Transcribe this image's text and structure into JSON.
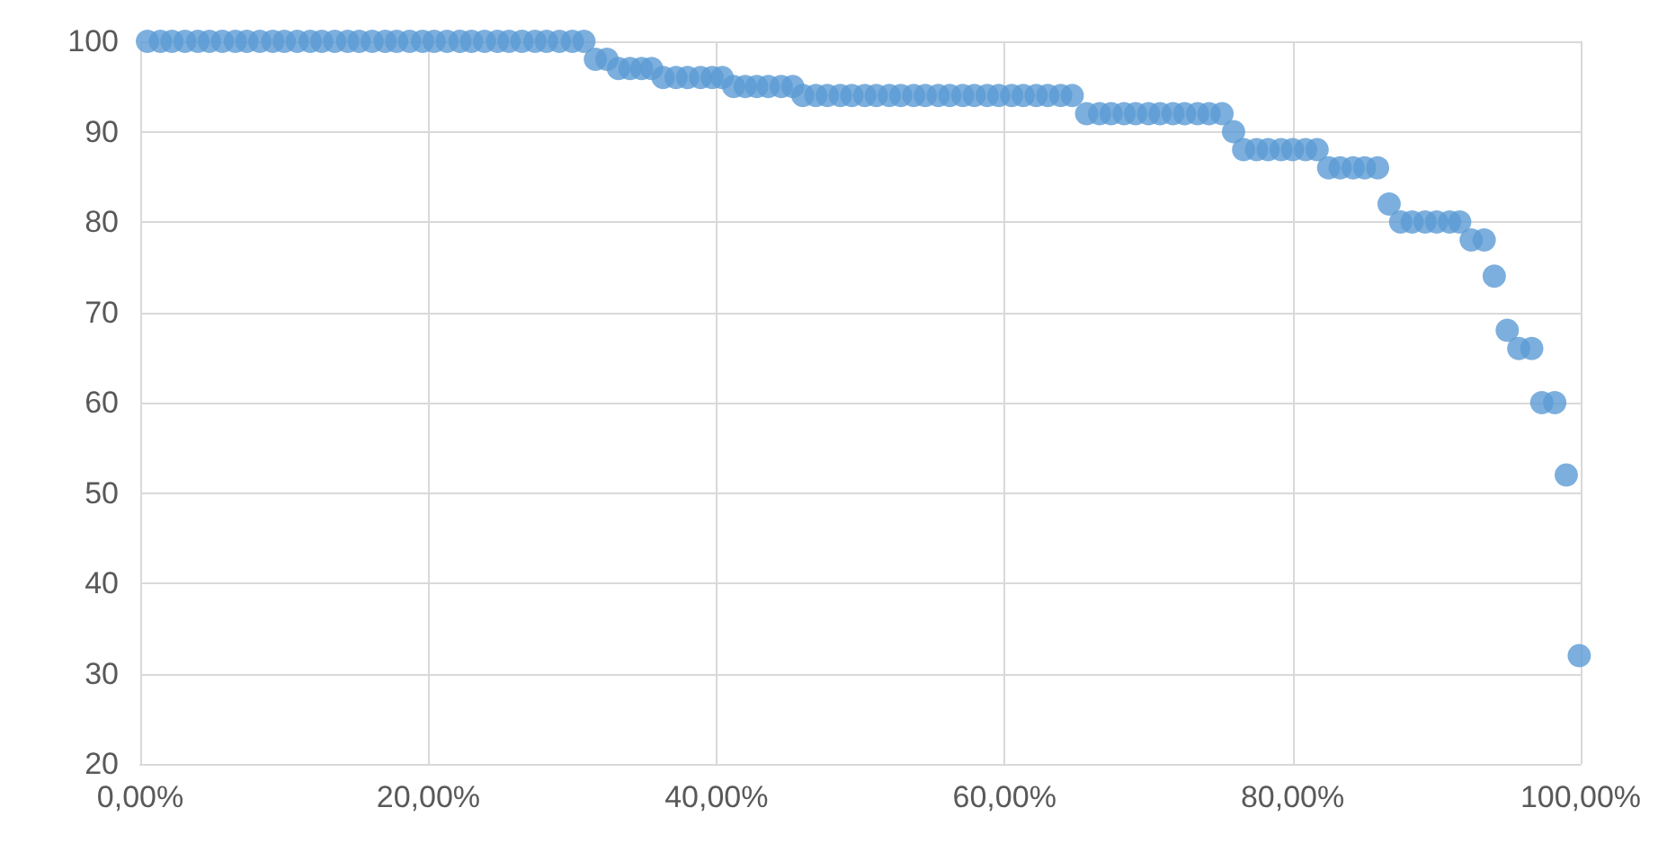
{
  "chart_data": {
    "type": "scatter",
    "color": "#5b9bd5",
    "marker": "circle",
    "grid": true,
    "x": [
      0.5,
      1.4,
      2.2,
      3.1,
      4.0,
      4.8,
      5.7,
      6.6,
      7.4,
      8.3,
      9.2,
      10.0,
      10.9,
      11.8,
      12.6,
      13.5,
      14.4,
      15.2,
      16.1,
      17.0,
      17.8,
      18.7,
      19.6,
      20.4,
      21.3,
      22.2,
      23.0,
      23.9,
      24.8,
      25.6,
      26.5,
      27.4,
      28.2,
      29.1,
      30.0,
      30.8,
      31.6,
      32.4,
      33.2,
      34.0,
      34.8,
      35.5,
      36.3,
      37.2,
      38.0,
      38.9,
      39.7,
      40.4,
      41.2,
      42.0,
      42.8,
      43.6,
      44.5,
      45.3,
      46.0,
      46.9,
      47.7,
      48.6,
      49.4,
      50.3,
      51.1,
      52.0,
      52.8,
      53.7,
      54.5,
      55.4,
      56.2,
      57.1,
      57.9,
      58.8,
      59.6,
      60.5,
      61.3,
      62.2,
      63.0,
      63.9,
      64.7,
      65.7,
      66.6,
      67.4,
      68.3,
      69.1,
      70.0,
      70.8,
      71.7,
      72.5,
      73.4,
      74.2,
      75.1,
      75.9,
      76.6,
      77.5,
      78.3,
      79.2,
      80.0,
      80.9,
      81.7,
      82.5,
      83.3,
      84.2,
      85.0,
      85.9,
      86.7,
      87.5,
      88.3,
      89.2,
      90.0,
      90.9,
      91.6,
      92.4,
      93.3,
      94.0,
      94.9,
      95.7,
      96.6,
      97.3,
      98.2,
      99.0,
      99.9
    ],
    "values": [
      100,
      100,
      100,
      100,
      100,
      100,
      100,
      100,
      100,
      100,
      100,
      100,
      100,
      100,
      100,
      100,
      100,
      100,
      100,
      100,
      100,
      100,
      100,
      100,
      100,
      100,
      100,
      100,
      100,
      100,
      100,
      100,
      100,
      100,
      100,
      100,
      98,
      98,
      97,
      97,
      97,
      97,
      96,
      96,
      96,
      96,
      96,
      96,
      95,
      95,
      95,
      95,
      95,
      95,
      94,
      94,
      94,
      94,
      94,
      94,
      94,
      94,
      94,
      94,
      94,
      94,
      94,
      94,
      94,
      94,
      94,
      94,
      94,
      94,
      94,
      94,
      94,
      92,
      92,
      92,
      92,
      92,
      92,
      92,
      92,
      92,
      92,
      92,
      92,
      90,
      88,
      88,
      88,
      88,
      88,
      88,
      88,
      86,
      86,
      86,
      86,
      86,
      82,
      80,
      80,
      80,
      80,
      80,
      80,
      78,
      78,
      74,
      68,
      66,
      66,
      60,
      60,
      52,
      32
    ],
    "xlim": [
      0,
      100
    ],
    "xticks": [
      {
        "value": 0,
        "label": "0,00%"
      },
      {
        "value": 20,
        "label": "20,00%"
      },
      {
        "value": 40,
        "label": "40,00%"
      },
      {
        "value": 60,
        "label": "60,00%"
      },
      {
        "value": 80,
        "label": "80,00%"
      },
      {
        "value": 100,
        "label": "100,00%"
      }
    ],
    "ylim": [
      20,
      100
    ],
    "yticks": [
      20,
      30,
      40,
      50,
      60,
      70,
      80,
      90,
      100
    ]
  }
}
